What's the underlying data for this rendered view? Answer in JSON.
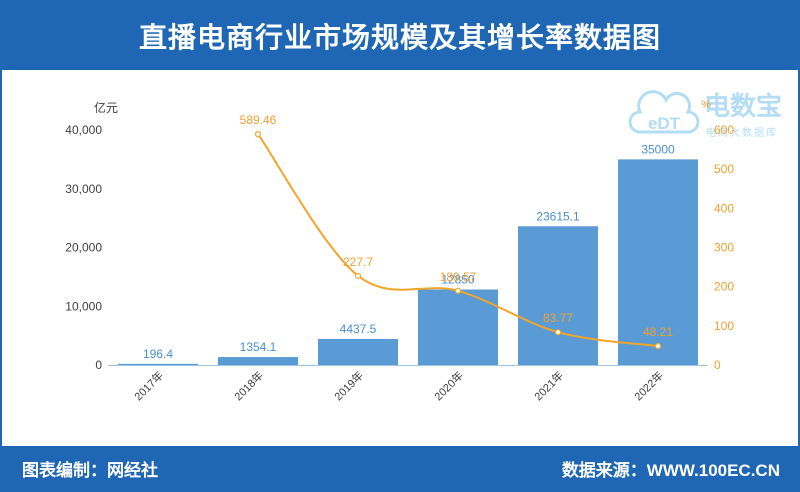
{
  "colors": {
    "brand": "#1f67b5",
    "bar": "#5b9bd5",
    "bar_label": "#4a8fcf",
    "line": "#f5a42a",
    "line_label": "#f0a030",
    "axis_text": "#404040",
    "baseline": "#9dc3e6",
    "logo": "#7fc8f0"
  },
  "logo": {
    "mark": "eDT",
    "name": "电数宝",
    "tagline": "电商大数据库"
  },
  "footer": {
    "left": "图表编制：网经社",
    "right": "数据来源：WWW.100EC.CN"
  },
  "chart_data": {
    "type": "bar",
    "title": "直播电商行业市场规模及其增长率数据图",
    "categories": [
      "2017年",
      "2018年",
      "2019年",
      "2020年",
      "2021年",
      "2022年"
    ],
    "series": [
      {
        "type": "bar",
        "values": [
          196.4,
          1354.1,
          4437.5,
          12850,
          23615.1,
          35000
        ],
        "labels": [
          "196.4",
          "1354.1",
          "4437.5",
          "12850",
          "23615.1",
          "35000"
        ]
      },
      {
        "type": "line",
        "values": [
          null,
          589.46,
          227.7,
          189.57,
          83.77,
          48.21
        ],
        "labels": [
          null,
          "589.46",
          "227.7",
          "189.57",
          "83.77",
          "48.21"
        ]
      }
    ],
    "y_left": {
      "label": "亿元",
      "range": [
        0,
        40000
      ],
      "ticks": [
        "0",
        "10,000",
        "20,000",
        "30,000",
        "40,000"
      ]
    },
    "y_right": {
      "label": "%",
      "range": [
        0,
        600
      ],
      "ticks": [
        "0",
        "100",
        "200",
        "300",
        "400",
        "500",
        "600"
      ]
    },
    "grid": false
  }
}
